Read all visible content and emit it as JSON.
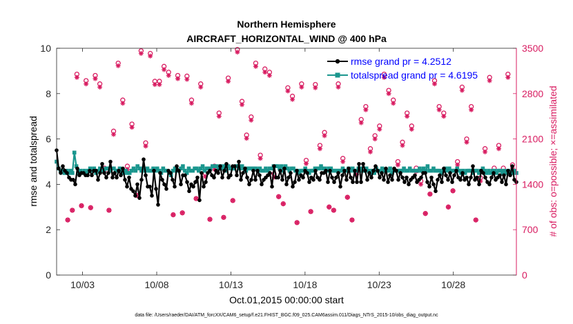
{
  "chart_data": {
    "type": "line",
    "title": "Northern Hemisphere",
    "subtitle": "AIRCRAFT_HORIZONTAL_WIND @ 400 hPa",
    "xlabel": "Oct.01,2015 00:00:00 start",
    "ylabel": "rmse and totalspread",
    "y2label": "# of obs: o=possible; ×=assimilated",
    "footnote": "data file: /Users/raeder/DAI/ATM_forcXX/CAM6_setup/f.e21.FHIST_BGC.f09_025.CAM6assim.011/Diags_NTrS_2015-10/obs_diag_output.nc",
    "x_tick_labels": [
      "10/03",
      "10/08",
      "10/13",
      "10/18",
      "10/23",
      "10/28"
    ],
    "x_tick_values": [
      2,
      7,
      12,
      17,
      22,
      27
    ],
    "xlim": [
      0.25,
      31.25
    ],
    "ylim": [
      0,
      10
    ],
    "y_ticks": [
      "0",
      "2",
      "4",
      "6",
      "8",
      "10"
    ],
    "y2lim": [
      0,
      3500
    ],
    "y2_ticks": [
      "0",
      "700",
      "1400",
      "2100",
      "2800",
      "3500"
    ],
    "colors": {
      "rmse": "#000000",
      "spread": "#1a968e",
      "obs": "#d81b60",
      "legend_text": "#0000ff"
    },
    "legend": [
      {
        "name": "rmse grand pr = 4.2512",
        "series": "rmse"
      },
      {
        "name": "totalspread grand pr = 4.6195",
        "series": "spread"
      }
    ],
    "series": [
      {
        "name": "rmse",
        "axis": "left",
        "values": [
          5.5,
          4.7,
          4.5,
          4.8,
          4.6,
          4.5,
          4.3,
          4.2,
          4.2,
          4.0,
          4.7,
          4.4,
          4.5,
          4.5,
          4.4,
          4.4,
          4.6,
          4.4,
          4.6,
          4.6,
          4.2,
          4.5,
          4.9,
          4.5,
          4.3,
          4.5,
          5.0,
          4.3,
          4.5,
          4.3,
          4.6,
          4.4,
          4.7,
          4.2,
          3.9,
          4.3,
          3.8,
          3.7,
          3.5,
          4.0,
          3.4,
          4.2,
          5.1,
          4.4,
          3.9,
          3.9,
          3.5,
          4.6,
          3.8,
          3.1,
          4.5,
          4.2,
          4.0,
          3.8,
          4.6,
          4.5,
          4.2,
          3.9,
          4.8,
          4.6,
          4.0,
          4.4,
          4.4,
          4.1,
          3.7,
          4.0,
          3.9,
          4.1,
          4.3,
          3.3,
          4.5,
          3.9,
          4.1,
          4.5,
          4.6,
          4.4,
          4.3,
          4.6,
          4.5,
          4.8,
          4.3,
          4.6,
          4.9,
          4.3,
          4.4,
          4.8,
          4.8,
          4.4,
          5.0,
          4.2,
          4.5,
          4.7,
          4.3,
          4.0,
          4.2,
          4.6,
          4.2,
          4.6,
          4.4,
          4.0,
          4.2,
          4.3,
          4.4,
          4.5,
          3.9,
          4.8,
          4.3,
          4.3,
          4.6,
          4.2,
          4.7,
          4.0,
          4.3,
          4.5,
          3.9,
          4.1,
          4.6,
          4.2,
          4.4,
          4.3,
          4.6,
          4.5,
          4.1,
          4.3,
          4.2,
          4.6,
          4.3,
          4.2,
          4.5,
          4.5,
          4.6,
          4.1,
          4.6,
          4.3,
          4.1,
          4.3,
          4.5,
          3.9,
          4.4,
          4.6,
          4.2,
          4.7,
          4.3,
          4.1,
          4.6,
          4.1,
          4.9,
          4.1,
          4.9,
          4.6,
          4.2,
          4.5,
          4.3,
          4.6,
          4.8,
          4.6,
          4.3,
          4.5,
          4.2,
          4.7,
          4.1,
          4.4,
          4.2,
          4.7,
          4.6,
          4.2,
          4.5,
          4.3,
          4.1,
          4.3,
          4.0,
          4.2,
          4.3,
          4.4,
          4.1,
          4.2,
          4.3,
          4.5,
          4.5,
          4.1,
          3.9,
          4.3,
          4.0,
          3.7,
          4.2,
          4.4,
          4.1,
          4.7,
          4.4,
          4.2,
          4.5,
          4.1,
          4.4,
          4.6,
          4.3,
          4.2,
          4.5,
          4.2,
          4.3,
          4.0,
          4.3,
          4.8,
          4.2,
          4.3,
          4.0,
          4.6,
          4.5,
          4.3,
          4.1,
          4.0,
          4.3,
          4.5,
          4.2,
          4.3,
          4.4,
          4.1,
          4.4,
          4.0,
          4.6,
          4.4,
          4.8,
          4.2,
          4.1
        ]
      },
      {
        "name": "totalspread",
        "axis": "left",
        "values": [
          5.0,
          4.7,
          4.6,
          4.6,
          4.5,
          4.6,
          4.5,
          4.6,
          4.5,
          5.4,
          4.8,
          4.5,
          4.6,
          4.5,
          4.6,
          4.5,
          4.6,
          4.7,
          4.6,
          4.7,
          4.5,
          4.6,
          4.7,
          4.6,
          4.6,
          4.7,
          4.7,
          4.6,
          4.7,
          4.7,
          4.6,
          4.6,
          4.7,
          4.6,
          4.5,
          4.6,
          4.5,
          4.5,
          4.6,
          4.7,
          4.6,
          4.8,
          4.7,
          4.6,
          4.7,
          4.6,
          4.7,
          4.6,
          4.6,
          4.7,
          4.6,
          4.7,
          4.6,
          4.5,
          4.7,
          4.6,
          4.6,
          4.5,
          4.4,
          4.6,
          4.7,
          4.6,
          4.6,
          4.7,
          4.8,
          4.6,
          4.5,
          4.7,
          4.6,
          4.6,
          4.7,
          4.7,
          4.6,
          4.7,
          4.8,
          4.6,
          4.7,
          4.7,
          4.7,
          4.8,
          4.8,
          4.8,
          4.7,
          4.8,
          4.7,
          4.8,
          4.6,
          4.8,
          4.7,
          4.7,
          4.7,
          4.8,
          4.8,
          4.7,
          4.8,
          4.7,
          4.6,
          4.7,
          4.7,
          4.7,
          4.7,
          4.7,
          4.6,
          4.7,
          4.6,
          4.6,
          4.7,
          4.6,
          4.7,
          4.7,
          4.8,
          4.8,
          4.8,
          4.7,
          4.8,
          4.6,
          4.8,
          4.7,
          4.6,
          4.7,
          4.7,
          4.6,
          4.6,
          4.5,
          4.6,
          4.6,
          4.7,
          4.6,
          4.5,
          4.6,
          4.6,
          4.7,
          4.7,
          4.7,
          4.8,
          4.7,
          4.7,
          4.6,
          4.7,
          4.7,
          4.6,
          4.6,
          4.6,
          4.6,
          4.6,
          4.7,
          4.6,
          4.6,
          4.7,
          4.6,
          4.7,
          4.6,
          4.6,
          4.7,
          4.7,
          4.6,
          4.6,
          4.7,
          4.6,
          4.5,
          4.6,
          4.5,
          4.7,
          4.6,
          4.6,
          4.7,
          4.6,
          4.6,
          4.6,
          4.7,
          4.5,
          4.6,
          4.6,
          4.6,
          4.6,
          4.6,
          4.7,
          4.6,
          4.6,
          4.7,
          4.6,
          4.6,
          4.6,
          4.6,
          4.7,
          4.6,
          4.7,
          4.6,
          4.8,
          4.6,
          4.6,
          4.7,
          4.6,
          4.6,
          4.6,
          4.5,
          4.6,
          4.7,
          4.6,
          4.7,
          4.6,
          4.6,
          4.6,
          4.7,
          4.6,
          4.5,
          4.6,
          4.5,
          4.6,
          4.6,
          4.6,
          4.5,
          4.6,
          4.6,
          4.5,
          4.6,
          4.7,
          4.6,
          4.5,
          4.6,
          4.5,
          4.6,
          4.6,
          4.5,
          4.6,
          4.6,
          4.5,
          4.6,
          4.5,
          4.6,
          4.5,
          4.5,
          4.6,
          4.5
        ]
      },
      {
        "name": "possible",
        "axis": "right",
        "marker": "circle",
        "values": [
          850,
          1000,
          3100,
          1070,
          3000,
          1040,
          3080,
          2950,
          1650,
          1000,
          2220,
          3270,
          2700,
          1680,
          2330,
          1230,
          3460,
          2040,
          3420,
          2990,
          2990,
          3220,
          3130,
          930,
          3080,
          960,
          3070,
          2700,
          1180,
          2950,
          1570,
          860,
          1680,
          2500,
          890,
          3040,
          1150,
          3480,
          2680,
          2160,
          2440,
          3270,
          1850,
          3180,
          3130,
          1560,
          1210,
          1100,
          2890,
          2760,
          810,
          2950,
          1770,
          980,
          2940,
          2000,
          2200,
          1050,
          1000,
          2950,
          1800,
          1200,
          850,
          1600,
          2400,
          2600,
          1950,
          2150,
          2300,
          3100,
          2850,
          2700,
          1750,
          2050,
          2500,
          2300,
          1650,
          1450,
          950,
          1250,
          3000,
          2600,
          2500,
          1050,
          1300,
          1750,
          2900,
          2100,
          2600,
          850,
          1500,
          1950,
          3050,
          1650,
          2000,
          1650,
          3100,
          1700
        ]
      },
      {
        "name": "assimilated",
        "axis": "right",
        "marker": "star",
        "values": [
          850,
          1000,
          3050,
          1070,
          2950,
          1040,
          3030,
          2900,
          1600,
          1000,
          2170,
          3230,
          2650,
          1630,
          2280,
          1230,
          3420,
          1990,
          3380,
          2940,
          2940,
          3170,
          3080,
          930,
          3030,
          960,
          3020,
          2650,
          1180,
          2900,
          1520,
          860,
          1630,
          2450,
          890,
          2990,
          1150,
          3440,
          2630,
          2110,
          2390,
          3220,
          1800,
          3130,
          3080,
          1510,
          1210,
          1100,
          2840,
          2710,
          810,
          2900,
          1720,
          980,
          2890,
          1950,
          2150,
          1050,
          1000,
          2900,
          1750,
          1200,
          850,
          1550,
          2350,
          2550,
          1900,
          2100,
          2250,
          3050,
          2800,
          2650,
          1700,
          2000,
          2450,
          2250,
          1600,
          1400,
          950,
          1250,
          2950,
          2550,
          2450,
          1050,
          1300,
          1700,
          2850,
          2050,
          2550,
          850,
          1450,
          1900,
          3000,
          1600,
          1950,
          1600,
          3050,
          1650
        ]
      }
    ]
  }
}
